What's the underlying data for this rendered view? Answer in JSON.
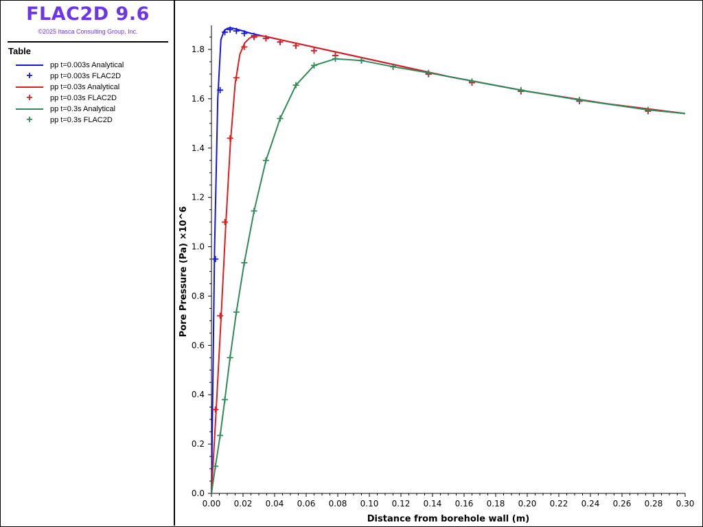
{
  "app": {
    "title": "FLAC2D 9.6",
    "copyright": "©2025 Itasca Consulting Group, Inc."
  },
  "legend": {
    "title": "Table",
    "items": [
      {
        "label": "pp t=0.003s Analytical",
        "kind": "line",
        "color": "#1414d6"
      },
      {
        "label": "pp t=0.003s FLAC2D",
        "kind": "marker",
        "color": "#1414d6"
      },
      {
        "label": "pp t=0.03s Analytical",
        "kind": "line",
        "color": "#e01b1b"
      },
      {
        "label": "pp t=0.03s FLAC2D",
        "kind": "marker",
        "color": "#e01b1b"
      },
      {
        "label": "pp t=0.3s Analytical",
        "kind": "line",
        "color": "#2e8b57"
      },
      {
        "label": "pp t=0.3s FLAC2D",
        "kind": "marker",
        "color": "#2e8b57"
      }
    ]
  },
  "chart_data": {
    "type": "line",
    "xlabel": "Distance from borehole wall (m)",
    "ylabel": "Pore Pressure (Pa) ×10^6",
    "xlim": [
      0,
      0.3
    ],
    "ylim": [
      0,
      1.9
    ],
    "xticks": [
      "0.00",
      "0.02",
      "0.04",
      "0.06",
      "0.08",
      "0.10",
      "0.12",
      "0.14",
      "0.16",
      "0.18",
      "0.20",
      "0.22",
      "0.24",
      "0.26",
      "0.28",
      "0.30"
    ],
    "yticks": [
      "0.0",
      "0.2",
      "0.4",
      "0.6",
      "0.8",
      "1.0",
      "1.2",
      "1.4",
      "1.6",
      "1.8"
    ],
    "grid": false,
    "series": [
      {
        "name": "pp t=0.003s Analytical",
        "kind": "line",
        "color": "#1414d6",
        "x": [
          0,
          0.002,
          0.004,
          0.006,
          0.008,
          0.01,
          0.012,
          0.016,
          0.025,
          0.05,
          0.1,
          0.15,
          0.2,
          0.25,
          0.3
        ],
        "y": [
          0,
          1.0,
          1.6,
          1.84,
          1.875,
          1.885,
          1.888,
          1.882,
          1.865,
          1.83,
          1.76,
          1.69,
          1.63,
          1.58,
          1.54
        ]
      },
      {
        "name": "pp t=0.003s FLAC2D",
        "kind": "marker",
        "color": "#1414d6",
        "x": [
          0.0025,
          0.0055,
          0.0085,
          0.0118,
          0.0158,
          0.0208,
          0.027,
          0.0345,
          0.0435,
          0.0535,
          0.065,
          0.0785,
          0.095,
          0.115,
          0.1375,
          0.165,
          0.196,
          0.233,
          0.2765
        ],
        "y": [
          0.95,
          1.635,
          1.87,
          1.88,
          1.875,
          1.865,
          1.855,
          1.845,
          1.83,
          1.815,
          1.795,
          1.775,
          1.755,
          1.73,
          1.7,
          1.665,
          1.63,
          1.59,
          1.55
        ]
      },
      {
        "name": "pp t=0.03s Analytical",
        "kind": "line",
        "color": "#e01b1b",
        "x": [
          0,
          0.003,
          0.006,
          0.009,
          0.012,
          0.015,
          0.018,
          0.021,
          0.024,
          0.027,
          0.03,
          0.035,
          0.05,
          0.1,
          0.15,
          0.2,
          0.25,
          0.3
        ],
        "y": [
          0,
          0.34,
          0.7,
          1.08,
          1.42,
          1.66,
          1.78,
          1.826,
          1.845,
          1.855,
          1.856,
          1.852,
          1.83,
          1.76,
          1.69,
          1.63,
          1.58,
          1.54
        ]
      },
      {
        "name": "pp t=0.03s FLAC2D",
        "kind": "marker",
        "color": "#e01b1b",
        "x": [
          0.0025,
          0.0055,
          0.0085,
          0.0118,
          0.0158,
          0.0208,
          0.027,
          0.0345,
          0.0435,
          0.0535,
          0.065,
          0.0785,
          0.095,
          0.115,
          0.1375,
          0.165,
          0.196,
          0.233,
          0.2765
        ],
        "y": [
          0.34,
          0.72,
          1.1,
          1.44,
          1.685,
          1.81,
          1.85,
          1.845,
          1.83,
          1.815,
          1.795,
          1.775,
          1.755,
          1.73,
          1.7,
          1.665,
          1.63,
          1.59,
          1.55
        ]
      },
      {
        "name": "pp t=0.3s Analytical",
        "kind": "line",
        "color": "#2e8b57",
        "x": [
          0,
          0.0025,
          0.0055,
          0.0085,
          0.0118,
          0.0158,
          0.0208,
          0.027,
          0.0345,
          0.0435,
          0.0535,
          0.065,
          0.0785,
          0.095,
          0.115,
          0.1375,
          0.165,
          0.196,
          0.233,
          0.2765,
          0.3
        ],
        "y": [
          0,
          0.11,
          0.235,
          0.38,
          0.55,
          0.735,
          0.935,
          1.145,
          1.35,
          1.52,
          1.655,
          1.735,
          1.762,
          1.755,
          1.73,
          1.705,
          1.672,
          1.635,
          1.595,
          1.555,
          1.54
        ]
      },
      {
        "name": "pp t=0.3s FLAC2D",
        "kind": "marker",
        "color": "#2e8b57",
        "x": [
          0.0025,
          0.0055,
          0.0085,
          0.0118,
          0.0158,
          0.0208,
          0.027,
          0.0345,
          0.0435,
          0.0535,
          0.065,
          0.0785,
          0.095,
          0.115,
          0.1375,
          0.165,
          0.196,
          0.233,
          0.2765
        ],
        "y": [
          0.11,
          0.235,
          0.38,
          0.55,
          0.735,
          0.935,
          1.145,
          1.35,
          1.52,
          1.655,
          1.735,
          1.762,
          1.755,
          1.73,
          1.705,
          1.67,
          1.635,
          1.595,
          1.555
        ]
      }
    ]
  }
}
